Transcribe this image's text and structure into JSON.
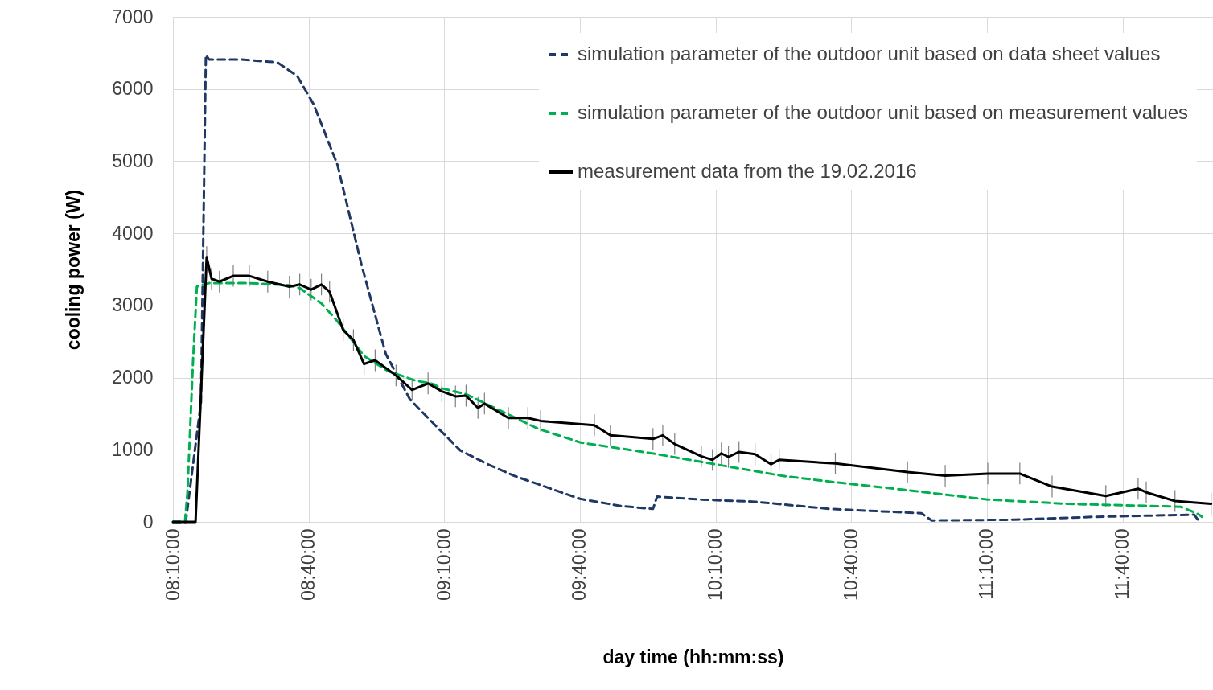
{
  "chart_data": {
    "type": "line",
    "xlabel": "day time (hh:mm:ss)",
    "ylabel": "cooling power (W)",
    "xlim": [
      8.1667,
      12.0
    ],
    "ylim": [
      0,
      7000
    ],
    "xticks": [
      {
        "value": 8.1667,
        "label": "08:10:00"
      },
      {
        "value": 8.6667,
        "label": "08:40:00"
      },
      {
        "value": 9.1667,
        "label": "09:10:00"
      },
      {
        "value": 9.6667,
        "label": "09:40:00"
      },
      {
        "value": 10.1667,
        "label": "10:10:00"
      },
      {
        "value": 10.6667,
        "label": "10:40:00"
      },
      {
        "value": 11.1667,
        "label": "11:10:00"
      },
      {
        "value": 11.6667,
        "label": "11:40:00"
      }
    ],
    "yticks": [
      0,
      1000,
      2000,
      3000,
      4000,
      5000,
      6000,
      7000
    ],
    "grid": true,
    "legend": "top right",
    "marker": "none",
    "series": [
      {
        "name": "simulation parameter of the outdoor unit based on data sheet values",
        "color": "#1f3864",
        "line_style": "dashed",
        "x": [
          8.167,
          8.214,
          8.27,
          8.288,
          8.3,
          8.418,
          8.551,
          8.625,
          8.685,
          8.773,
          8.862,
          8.951,
          9.04,
          9.128,
          9.226,
          9.327,
          9.424,
          9.522,
          9.667,
          9.818,
          9.936,
          9.951,
          10.114,
          10.312,
          10.587,
          10.925,
          10.963,
          11.268,
          11.564,
          11.931,
          11.948
        ],
        "values": [
          0,
          0,
          1660,
          6470,
          6410,
          6410,
          6370,
          6180,
          5790,
          4950,
          3560,
          2330,
          1700,
          1360,
          990,
          800,
          640,
          510,
          320,
          220,
          180,
          350,
          310,
          280,
          180,
          120,
          20,
          30,
          70,
          100,
          10
        ]
      },
      {
        "name": "simulation parameter of the outdoor unit based on measurement values",
        "color": "#00b050",
        "line_style": "dashed",
        "x": [
          8.167,
          8.211,
          8.22,
          8.241,
          8.255,
          8.3,
          8.448,
          8.596,
          8.634,
          8.714,
          8.773,
          8.812,
          8.871,
          8.96,
          9.06,
          9.128,
          9.149,
          9.247,
          9.386,
          9.513,
          9.67,
          9.918,
          10.164,
          10.41,
          10.608,
          10.874,
          11.17,
          11.466,
          11.88,
          11.94,
          11.96
        ],
        "values": [
          0,
          0,
          400,
          2250,
          3260,
          3310,
          3310,
          3280,
          3240,
          3030,
          2780,
          2590,
          2300,
          2090,
          1960,
          1910,
          1860,
          1770,
          1520,
          1290,
          1100,
          960,
          800,
          640,
          550,
          440,
          310,
          250,
          210,
          120,
          70
        ]
      },
      {
        "name": "measurement data from the 19.02.2016",
        "color": "#000000",
        "line_style": "solid",
        "x": [
          8.167,
          8.25,
          8.291,
          8.309,
          8.338,
          8.389,
          8.448,
          8.516,
          8.596,
          8.634,
          8.676,
          8.714,
          8.744,
          8.794,
          8.832,
          8.871,
          8.912,
          8.989,
          9.048,
          9.107,
          9.158,
          9.208,
          9.247,
          9.291,
          9.315,
          9.403,
          9.475,
          9.522,
          9.72,
          9.779,
          9.936,
          9.972,
          10.016,
          10.114,
          10.155,
          10.188,
          10.214,
          10.253,
          10.312,
          10.371,
          10.401,
          10.608,
          10.874,
          11.013,
          11.17,
          11.288,
          11.407,
          11.605,
          11.724,
          11.754,
          11.86,
          11.993
        ],
        "values": [
          0,
          0,
          3670,
          3370,
          3330,
          3410,
          3410,
          3330,
          3260,
          3290,
          3220,
          3290,
          3190,
          2660,
          2520,
          2190,
          2240,
          2030,
          1830,
          1920,
          1810,
          1740,
          1750,
          1580,
          1640,
          1440,
          1440,
          1400,
          1340,
          1200,
          1150,
          1200,
          1080,
          910,
          860,
          950,
          900,
          970,
          940,
          800,
          860,
          810,
          690,
          640,
          670,
          670,
          490,
          360,
          460,
          410,
          290,
          250
        ],
        "errors": [
          null,
          null,
          150,
          150,
          150,
          150,
          150,
          150,
          150,
          150,
          150,
          150,
          150,
          150,
          150,
          150,
          150,
          150,
          150,
          150,
          150,
          150,
          150,
          150,
          150,
          150,
          150,
          150,
          150,
          150,
          150,
          150,
          150,
          150,
          150,
          150,
          150,
          150,
          150,
          150,
          150,
          150,
          150,
          150,
          150,
          150,
          150,
          150,
          150,
          150,
          150,
          150
        ]
      }
    ]
  }
}
